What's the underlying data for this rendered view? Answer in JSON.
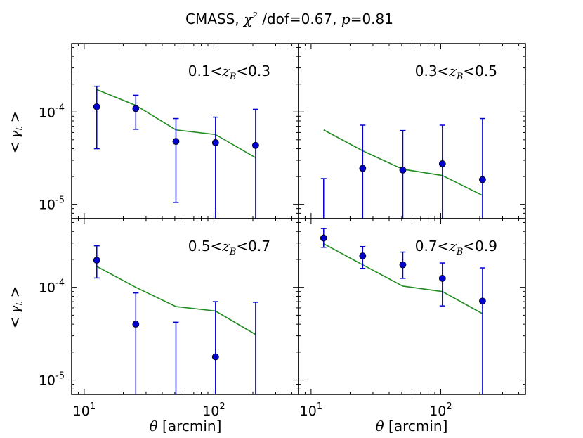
{
  "title": {
    "prefix": "CMASS, ",
    "chi": "χ",
    "chi_exp": "2",
    "middle": " /dof=0.67, ",
    "p": "p",
    "suffix": "=0.81"
  },
  "xlabel": {
    "symbol": "θ",
    "text": " [arcmin]"
  },
  "ylabel": {
    "open": "<",
    "symbol": "γ",
    "sub": "t",
    "close": ">"
  },
  "x_ticks": [
    {
      "value": 10,
      "base": "10",
      "exp": "1"
    },
    {
      "value": 100,
      "base": "10",
      "exp": "2"
    }
  ],
  "y_ticks": [
    {
      "value": 0.0001,
      "base": "10",
      "exp": "-4"
    },
    {
      "value": 1e-05,
      "base": "10",
      "exp": "-5"
    }
  ],
  "colors": {
    "data": "#0000cc",
    "model": "#228b22",
    "axes": "#000000"
  },
  "chart_data": [
    {
      "type": "line",
      "panel": "top-left",
      "label": {
        "lo": "0.1<",
        "z": "z",
        "zsub": "B",
        "hi": "<0.3"
      },
      "xscale": "log",
      "yscale": "log",
      "xlim": [
        8,
        450
      ],
      "ylim": [
        7e-06,
        0.00055
      ],
      "series": [
        {
          "kind": "scatter-errorbar",
          "x": [
            12.5,
            25,
            51,
            103,
            210
          ],
          "y": [
            0.000114,
            0.000109,
            4.8e-05,
            4.65e-05,
            4.35e-05
          ],
          "yerr_low": [
            4e-05,
            6.5e-05,
            1.05e-05,
            5.5e-06,
            6.5e-06
          ],
          "yerr_high": [
            0.00019,
            0.000152,
            8.5e-05,
            8.8e-05,
            0.000107
          ]
        },
        {
          "kind": "model-line",
          "x": [
            12.5,
            25,
            51,
            103,
            210
          ],
          "y": [
            0.000175,
            0.000118,
            6.4e-05,
            5.7e-05,
            3.2e-05
          ]
        }
      ]
    },
    {
      "type": "line",
      "panel": "top-right",
      "label": {
        "lo": "0.3<",
        "z": "z",
        "zsub": "B",
        "hi": "<0.5"
      },
      "xscale": "log",
      "yscale": "log",
      "xlim": [
        8,
        450
      ],
      "ylim": [
        7e-06,
        0.00055
      ],
      "series": [
        {
          "kind": "scatter-errorbar",
          "x": [
            12.5,
            25,
            51,
            103,
            210
          ],
          "y": [
            null,
            2.45e-05,
            2.35e-05,
            2.75e-05,
            1.85e-05
          ],
          "yerr_low": [
            5e-06,
            5e-06,
            5e-06,
            5e-06,
            5e-06
          ],
          "yerr_high": [
            1.9e-05,
            7.2e-05,
            6.3e-05,
            7.2e-05,
            8.5e-05
          ]
        },
        {
          "kind": "model-line",
          "x": [
            12.5,
            25,
            51,
            103,
            210
          ],
          "y": [
            6.4e-05,
            3.8e-05,
            2.4e-05,
            2.05e-05,
            1.25e-05
          ]
        }
      ]
    },
    {
      "type": "line",
      "panel": "bottom-left",
      "label": {
        "lo": "0.5<",
        "z": "z",
        "zsub": "B",
        "hi": "<0.7"
      },
      "xscale": "log",
      "yscale": "log",
      "xlim": [
        8,
        450
      ],
      "ylim": [
        7e-06,
        0.00055
      ],
      "series": [
        {
          "kind": "scatter-errorbar",
          "x": [
            12.5,
            25,
            51,
            103,
            210
          ],
          "y": [
            0.000196,
            4e-05,
            null,
            1.78e-05,
            null
          ],
          "yerr_low": [
            0.000126,
            5e-06,
            5e-06,
            5e-06,
            5e-06
          ],
          "yerr_high": [
            0.00028,
            8.7e-05,
            4.2e-05,
            7e-05,
            6.9e-05
          ]
        },
        {
          "kind": "model-line",
          "x": [
            12.5,
            25,
            51,
            103,
            210
          ],
          "y": [
            0.000168,
            0.0001,
            6.2e-05,
            5.55e-05,
            3.1e-05
          ]
        }
      ]
    },
    {
      "type": "line",
      "panel": "bottom-right",
      "label": {
        "lo": "0.7<",
        "z": "z",
        "zsub": "B",
        "hi": "<0.9"
      },
      "xscale": "log",
      "yscale": "log",
      "xlim": [
        8,
        450
      ],
      "ylim": [
        7e-06,
        0.00055
      ],
      "series": [
        {
          "kind": "scatter-errorbar",
          "x": [
            12.5,
            25,
            51,
            103,
            210
          ],
          "y": [
            0.00034,
            0.000218,
            0.000175,
            0.000125,
            7.1e-05
          ],
          "yerr_low": [
            0.00027,
            0.00016,
            0.000125,
            6.3e-05,
            5e-06
          ],
          "yerr_high": [
            0.00043,
            0.000275,
            0.00024,
            0.000183,
            0.000162
          ]
        },
        {
          "kind": "model-line",
          "x": [
            12.5,
            25,
            51,
            103,
            210
          ],
          "y": [
            0.000295,
            0.000175,
            0.000103,
            9e-05,
            5.2e-05
          ]
        }
      ]
    }
  ]
}
